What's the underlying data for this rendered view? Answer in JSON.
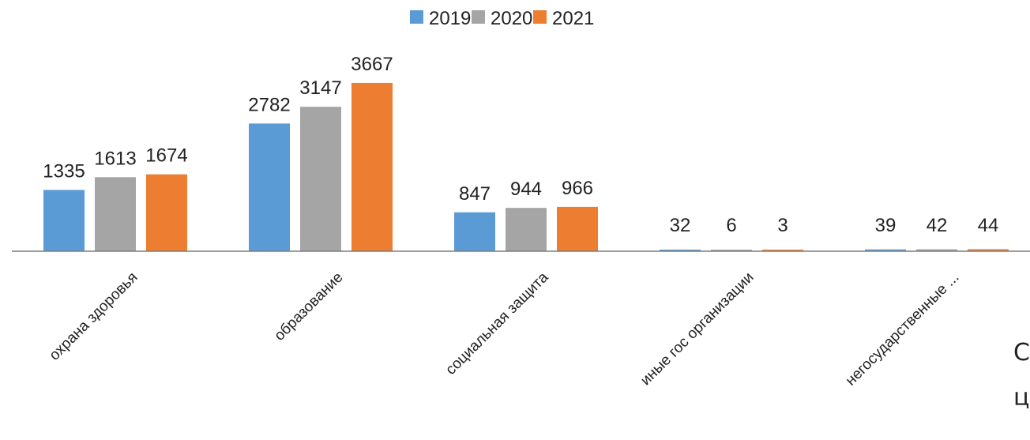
{
  "chart_data": {
    "type": "bar",
    "categories": [
      "охрана здоровья",
      "образование",
      "социальная защита",
      "иные гос организации",
      "негосударственные ..."
    ],
    "series": [
      {
        "name": "2019",
        "values": [
          1335,
          2782,
          847,
          32,
          39
        ],
        "color": "#5b9bd5"
      },
      {
        "name": "2020",
        "values": [
          1613,
          3147,
          944,
          6,
          42
        ],
        "color": "#a5a5a5"
      },
      {
        "name": "2021",
        "values": [
          1674,
          3667,
          966,
          3,
          44
        ],
        "color": "#ed7d31"
      }
    ],
    "legend": "top",
    "grid": false,
    "axis_color": "#7f7f7f",
    "ylim": [
      0,
      3700
    ]
  },
  "clipped_text": {
    "line1": "С",
    "line2": "ц"
  }
}
